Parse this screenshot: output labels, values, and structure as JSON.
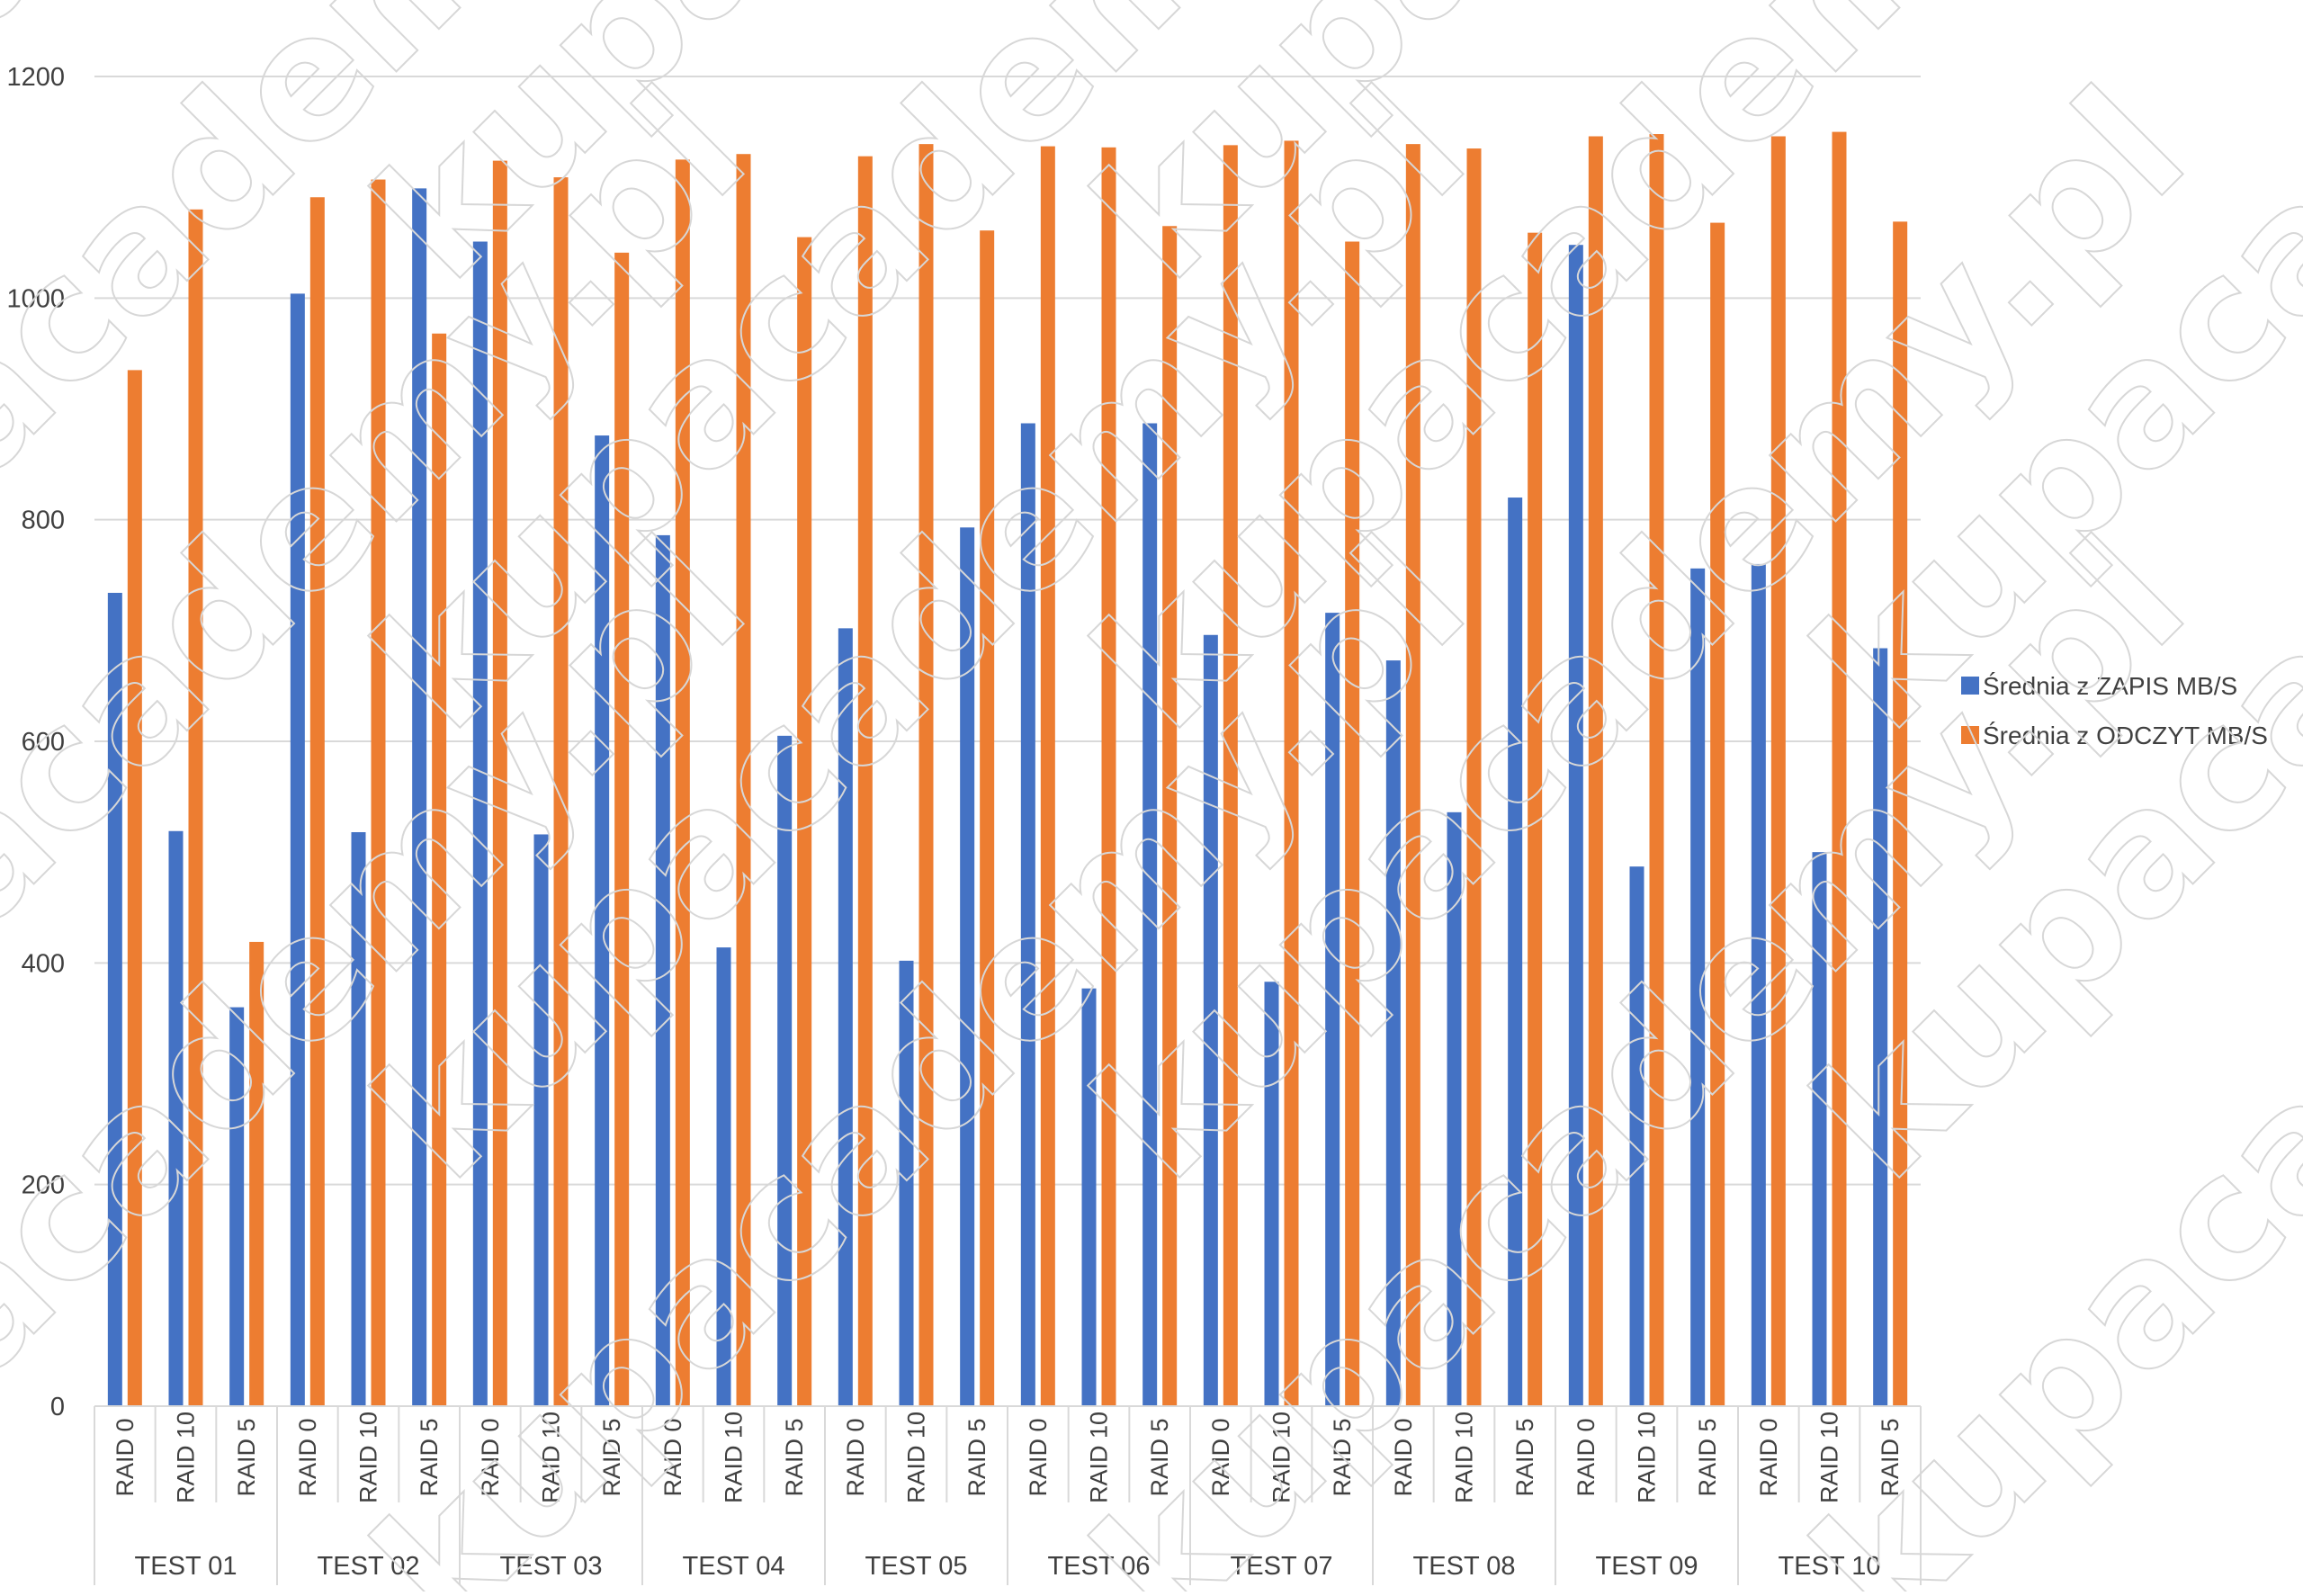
{
  "chart_data": {
    "type": "bar",
    "title": "",
    "xlabel": "",
    "ylabel": "",
    "ylim": [
      0,
      1200
    ],
    "y_ticks": [
      "0",
      "200",
      "400",
      "600",
      "800",
      "1000",
      "1200"
    ],
    "grid": true,
    "legend_position": "right",
    "groups": [
      "TEST 01",
      "TEST 02",
      "TEST 03",
      "TEST 04",
      "TEST 05",
      "TEST 06",
      "TEST 07",
      "TEST 08",
      "TEST 09",
      "TEST 10"
    ],
    "sub_categories": [
      "RAID 0",
      "RAID 10",
      "RAID 5"
    ],
    "series": [
      {
        "name": "Średnia z ZAPIS MB/S",
        "color": "#4472C4",
        "values": [
          734,
          519,
          360,
          1004,
          518,
          1099,
          1051,
          516,
          876,
          786,
          414,
          605,
          702,
          402,
          793,
          887,
          377,
          887,
          696,
          383,
          716,
          673,
          536,
          820,
          1048,
          487,
          756,
          760,
          500,
          684
        ]
      },
      {
        "name": "Średnia z ODCZYT MB/S",
        "color": "#ED7D31",
        "values": [
          935,
          1080,
          419,
          1091,
          1107,
          968,
          1124,
          1109,
          1041,
          1125,
          1130,
          1055,
          1128,
          1139,
          1061,
          1137,
          1136,
          1065,
          1138,
          1142,
          1051,
          1139,
          1135,
          1059,
          1146,
          1148,
          1068,
          1146,
          1150,
          1069
        ]
      }
    ]
  },
  "watermark": {
    "text": "kupacademy.pl",
    "color": "#d7d7d7"
  }
}
